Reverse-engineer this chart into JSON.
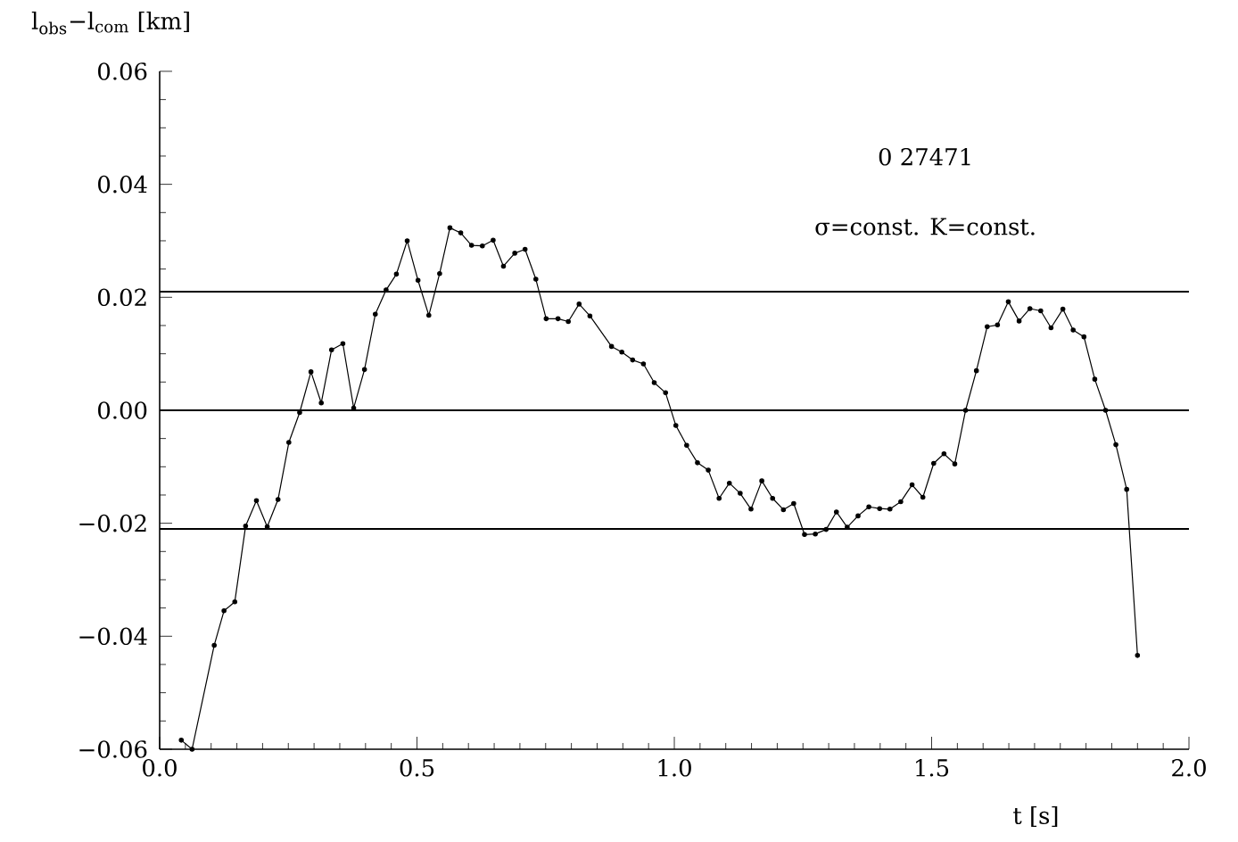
{
  "chart_data": {
    "type": "line",
    "xlabel": "t  [s]",
    "ylabel": "l$_{obs}$−l$_{com}$  [km]",
    "annotations": [
      "0  27471",
      "σ=const.    K=const."
    ],
    "x": [
      0.042,
      0.063,
      0.106,
      0.125,
      0.146,
      0.167,
      0.188,
      0.209,
      0.23,
      0.251,
      0.272,
      0.294,
      0.314,
      0.334,
      0.356,
      0.377,
      0.398,
      0.419,
      0.44,
      0.46,
      0.481,
      0.502,
      0.523,
      0.544,
      0.564,
      0.585,
      0.606,
      0.627,
      0.648,
      0.668,
      0.69,
      0.71,
      0.731,
      0.751,
      0.774,
      0.794,
      0.815,
      0.836,
      0.878,
      0.898,
      0.919,
      0.94,
      0.961,
      0.983,
      1.003,
      1.024,
      1.045,
      1.066,
      1.087,
      1.107,
      1.128,
      1.149,
      1.17,
      1.191,
      1.212,
      1.232,
      1.253,
      1.274,
      1.295,
      1.315,
      1.336,
      1.357,
      1.378,
      1.399,
      1.419,
      1.44,
      1.462,
      1.483,
      1.504,
      1.524,
      1.545,
      1.566,
      1.587,
      1.608,
      1.628,
      1.649,
      1.67,
      1.691,
      1.712,
      1.732,
      1.755,
      1.775,
      1.796,
      1.817,
      1.838,
      1.858,
      1.879,
      1.9
    ],
    "series": [
      {
        "color": "#000000",
        "values": [
          -0.0584,
          -0.06,
          -0.0416,
          -0.0355,
          -0.0339,
          -0.0205,
          -0.016,
          -0.0206,
          -0.0158,
          -0.0057,
          -0.0004,
          0.0068,
          0.0013,
          0.0107,
          0.0118,
          0.0004,
          0.0072,
          0.017,
          0.0213,
          0.0241,
          0.03,
          0.023,
          0.0168,
          0.0242,
          0.0323,
          0.0314,
          0.0292,
          0.0291,
          0.0301,
          0.0255,
          0.0278,
          0.0285,
          0.0232,
          0.0162,
          0.0162,
          0.0157,
          0.0188,
          0.0167,
          0.0113,
          0.0103,
          0.0089,
          0.0082,
          0.0049,
          0.0031,
          -0.0027,
          -0.0062,
          -0.0093,
          -0.0106,
          -0.0156,
          -0.0129,
          -0.0147,
          -0.0175,
          -0.0125,
          -0.0156,
          -0.0176,
          -0.0165,
          -0.022,
          -0.0219,
          -0.0211,
          -0.018,
          -0.0207,
          -0.0187,
          -0.0171,
          -0.0174,
          -0.0175,
          -0.0162,
          -0.0132,
          -0.0154,
          -0.0094,
          -0.0077,
          -0.0095,
          0.0,
          0.007,
          0.0148,
          0.0151,
          0.0192,
          0.0158,
          0.018,
          0.0176,
          0.0146,
          0.0179,
          0.0142,
          0.013,
          0.0055,
          0.0,
          -0.0061,
          -0.014,
          -0.0434
        ]
      }
    ],
    "xlim": [
      0,
      2.0
    ],
    "ylim": [
      -0.06,
      0.06
    ],
    "xticks": [
      {
        "value": 0,
        "label": "0.0"
      },
      {
        "value": 0.5,
        "label": "0.5"
      },
      {
        "value": 1.0,
        "label": "1.0"
      },
      {
        "value": 1.5,
        "label": "1.5"
      },
      {
        "value": 2.0,
        "label": "2.0"
      }
    ],
    "yticks": [
      {
        "value": -0.06,
        "label": "−0.06"
      },
      {
        "value": -0.04,
        "label": "−0.04"
      },
      {
        "value": -0.02,
        "label": "−0.02"
      },
      {
        "value": 0,
        "label": "0.00"
      },
      {
        "value": 0.02,
        "label": "0.02"
      },
      {
        "value": 0.04,
        "label": "0.04"
      },
      {
        "value": 0.06,
        "label": "0.06"
      }
    ],
    "ref_lines": [
      {
        "axis": "y",
        "value": 0.021
      },
      {
        "axis": "y",
        "value": 0
      },
      {
        "axis": "y",
        "value": -0.021
      }
    ],
    "marker": "circle",
    "line_style": "solid"
  }
}
